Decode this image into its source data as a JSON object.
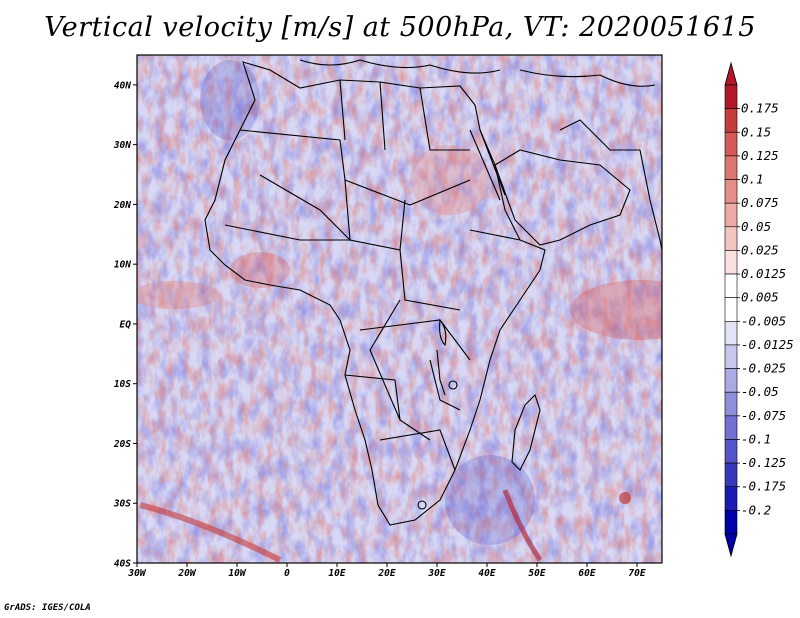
{
  "title": "Vertical velocity [m/s] at 500hPa, VT: 2020051615",
  "credit": "GrADS: IGES/COLA",
  "map": {
    "lat_labels": [
      "40N",
      "30N",
      "20N",
      "10N",
      "EQ",
      "10S",
      "20S",
      "30S",
      "40S"
    ],
    "lat_values": [
      40,
      30,
      20,
      10,
      0,
      -10,
      -20,
      -30,
      -40
    ],
    "lon_labels": [
      "30W",
      "20W",
      "10W",
      "0",
      "10E",
      "20E",
      "30E",
      "40E",
      "50E",
      "60E",
      "70E"
    ],
    "lon_values": [
      -30,
      -20,
      -10,
      0,
      10,
      20,
      30,
      40,
      50,
      60,
      70
    ],
    "lon_range": [
      -30,
      75
    ],
    "lat_range": [
      -40,
      45
    ]
  },
  "colorbar": {
    "labels": [
      "0.175",
      "0.15",
      "0.125",
      "0.1",
      "0.075",
      "0.05",
      "0.025",
      "0.0125",
      "0.005",
      "-0.005",
      "-0.0125",
      "-0.025",
      "-0.05",
      "-0.075",
      "-0.1",
      "-0.125",
      "-0.175",
      "-0.2"
    ],
    "colors": [
      "#b2182b",
      "#c43c3c",
      "#d35a56",
      "#dd7570",
      "#e58f8a",
      "#ecaaa6",
      "#f3c5c2",
      "#f9e0de",
      "#ffffff",
      "#ffffff",
      "#e3e3f6",
      "#c7c7ee",
      "#aaaae4",
      "#8e8edb",
      "#7171d1",
      "#5555c7",
      "#3838bd",
      "#1c1cb3",
      "#0000a8"
    ],
    "top_arrow_color": "#b2182b",
    "bottom_arrow_color": "#0000a8"
  }
}
